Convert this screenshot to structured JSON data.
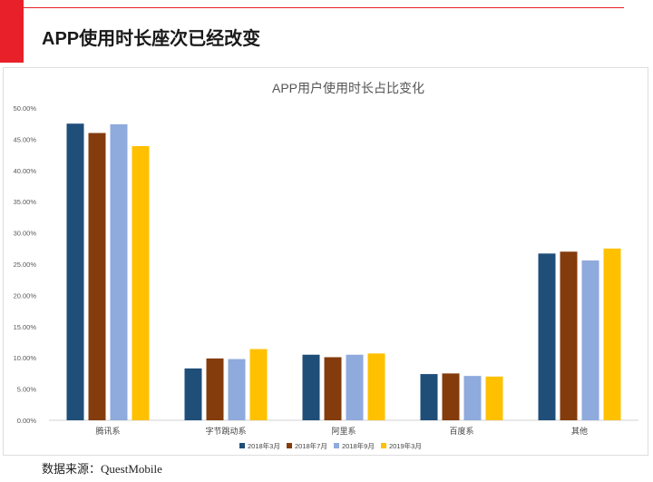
{
  "page": {
    "title": "APP使用时长座次已经改变",
    "source": "数据来源：QuestMobile",
    "accent_color": "#e8202a"
  },
  "chart_data": {
    "type": "bar",
    "title": "APP用户使用时长占比变化",
    "categories": [
      "腾讯系",
      "字节跳动系",
      "阿里系",
      "百度系",
      "其他"
    ],
    "series": [
      {
        "name": "2018年3月",
        "color": "#1f4e79",
        "values": [
          47.5,
          8.3,
          10.5,
          7.4,
          26.7
        ]
      },
      {
        "name": "2018年7月",
        "color": "#843c0c",
        "values": [
          46.0,
          9.9,
          10.1,
          7.5,
          27.0
        ]
      },
      {
        "name": "2018年9月",
        "color": "#8faadc",
        "values": [
          47.4,
          9.8,
          10.5,
          7.1,
          25.6
        ]
      },
      {
        "name": "2019年3月",
        "color": "#ffc000",
        "values": [
          43.9,
          11.4,
          10.7,
          7.0,
          27.5
        ]
      }
    ],
    "y_ticks": [
      "0.00%",
      "5.00%",
      "10.00%",
      "15.00%",
      "20.00%",
      "25.00%",
      "30.00%",
      "35.00%",
      "40.00%",
      "45.00%",
      "50.00%"
    ],
    "ylim": [
      0,
      50
    ],
    "y_unit": "%",
    "grid": false,
    "legend_position": "bottom"
  }
}
